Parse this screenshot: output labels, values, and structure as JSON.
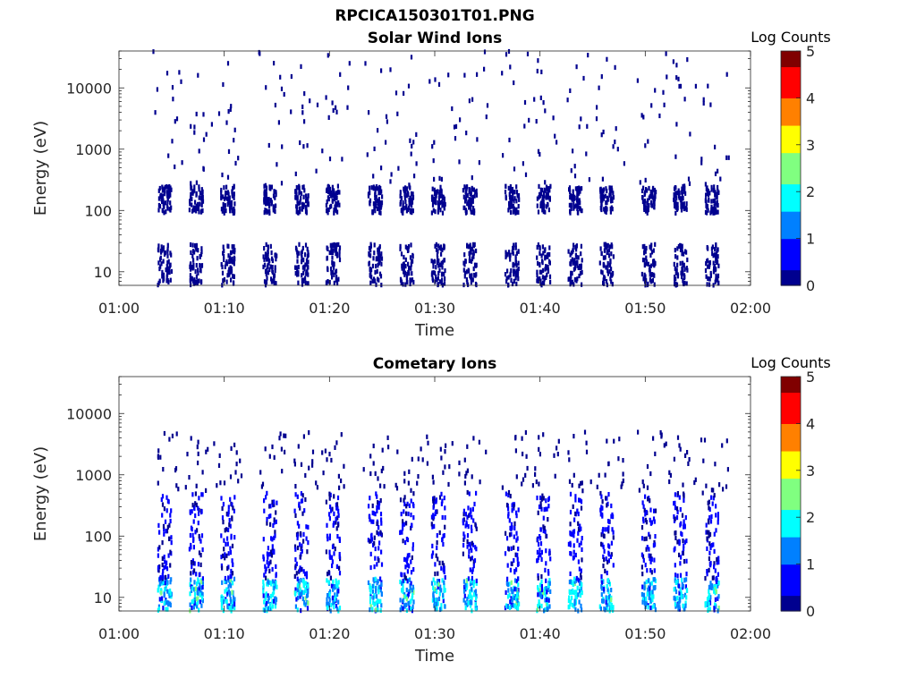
{
  "figure": {
    "title": "RPCICA150301T01.PNG"
  },
  "colormap": [
    "#00008f",
    "#0000ff",
    "#0080ff",
    "#00ffff",
    "#80ff80",
    "#ffff00",
    "#ff8000",
    "#ff0000",
    "#800000"
  ],
  "chart_data": [
    {
      "type": "heatmap",
      "title": "Solar Wind Ions",
      "xlabel": "Time",
      "ylabel": "Energy (eV)",
      "y_scale": "log",
      "x_ticks": [
        "01:00",
        "01:10",
        "01:20",
        "01:30",
        "01:40",
        "01:50",
        "02:00"
      ],
      "x_range": [
        "01:00",
        "02:00"
      ],
      "y_ticks": [
        "10",
        "100",
        "1000",
        "10000"
      ],
      "y_range_ev": [
        6,
        40000
      ],
      "colorbar": {
        "label": "Log Counts",
        "ticks": [
          "0",
          "1",
          "2",
          "3",
          "4",
          "5"
        ],
        "range": [
          0,
          5
        ]
      },
      "bursts_time_hhmm": [
        "01:04",
        "01:07",
        "01:10",
        "01:14",
        "01:17",
        "01:20",
        "01:24",
        "01:27",
        "01:30",
        "01:33",
        "01:37",
        "01:40",
        "01:43",
        "01:46",
        "01:50",
        "01:53",
        "01:56"
      ],
      "bands": [
        {
          "energy_ev": [
            6,
            28
          ],
          "log_counts": 0.2
        },
        {
          "energy_ev": [
            90,
            250
          ],
          "log_counts": 0.2
        },
        {
          "energy_ev": [
            250,
            40000
          ],
          "log_counts": 0.1,
          "note": "sparse"
        }
      ]
    },
    {
      "type": "heatmap",
      "title": "Cometary Ions",
      "xlabel": "Time",
      "ylabel": "Energy (eV)",
      "y_scale": "log",
      "x_ticks": [
        "01:00",
        "01:10",
        "01:20",
        "01:30",
        "01:40",
        "01:50",
        "02:00"
      ],
      "x_range": [
        "01:00",
        "02:00"
      ],
      "y_ticks": [
        "10",
        "100",
        "1000",
        "10000"
      ],
      "y_range_ev": [
        6,
        40000
      ],
      "colorbar": {
        "label": "Log Counts",
        "ticks": [
          "0",
          "1",
          "2",
          "3",
          "4",
          "5"
        ],
        "range": [
          0,
          5
        ]
      },
      "bursts_time_hhmm": [
        "01:04",
        "01:07",
        "01:10",
        "01:14",
        "01:17",
        "01:20",
        "01:24",
        "01:27",
        "01:30",
        "01:33",
        "01:37",
        "01:40",
        "01:43",
        "01:46",
        "01:50",
        "01:53",
        "01:56"
      ],
      "bands": [
        {
          "energy_ev": [
            6,
            20
          ],
          "log_counts": 1.5
        },
        {
          "energy_ev": [
            20,
            500
          ],
          "log_counts": 0.4
        },
        {
          "energy_ev": [
            500,
            5000
          ],
          "log_counts": 0.1,
          "note": "sparse"
        }
      ]
    }
  ]
}
